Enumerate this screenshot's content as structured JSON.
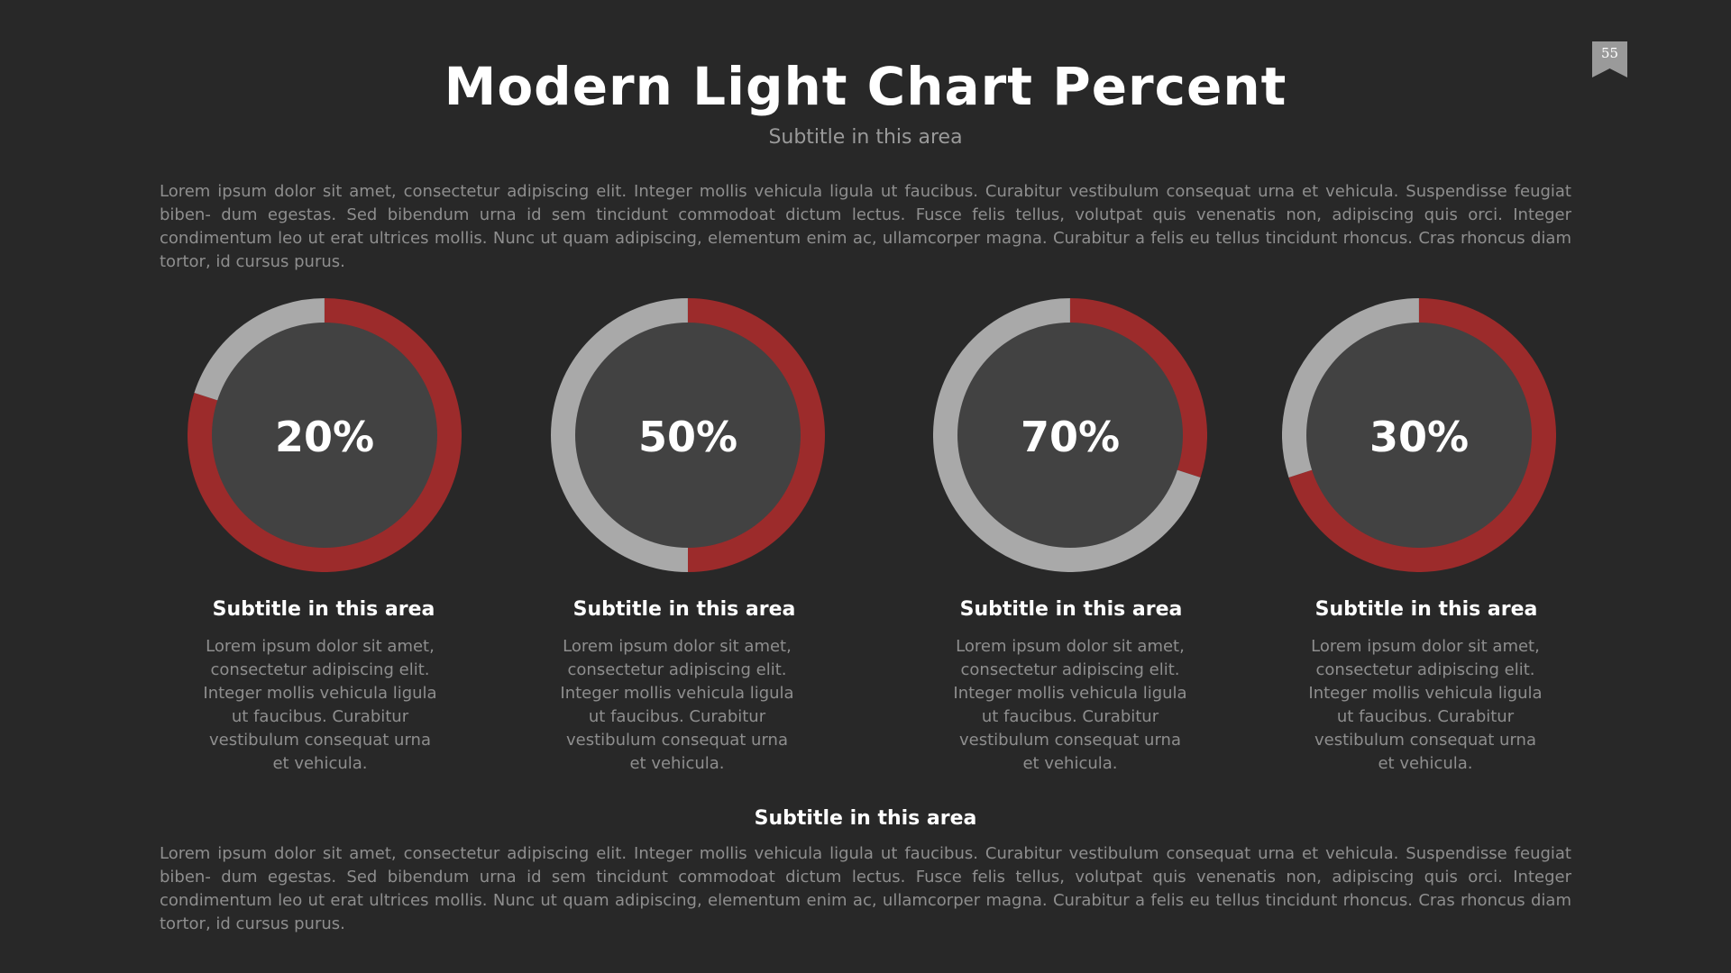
{
  "page_number": "55",
  "header": {
    "title": "Modern Light Chart Percent",
    "subtitle": "Subtitle in this area"
  },
  "intro_text": "Lorem ipsum dolor sit amet, consectetur adipiscing elit. Integer mollis vehicula ligula ut faucibus. Curabitur vestibulum consequat urna et vehicula. Suspendisse feugiat biben- dum egestas. Sed bibendum urna id sem tincidunt commodoat dictum lectus. Fusce felis tellus, volutpat quis venenatis non, adipiscing quis orci. Integer condimentum leo ut erat ultrices mollis. Nunc ut quam adipiscing, elementum enim ac, ullamcorper magna. Curabitur a felis eu tellus tincidunt rhoncus. Cras rhoncus diam tortor, id cursus purus.",
  "colors": {
    "background": "#282828",
    "accent": "#9c2b2b",
    "track": "#a9a9a9",
    "inner": "#424242"
  },
  "chart_data": {
    "type": "donut",
    "charts": [
      {
        "label": "20%",
        "value": 20,
        "highlight": "remainder"
      },
      {
        "label": "50%",
        "value": 50,
        "highlight": "value"
      },
      {
        "label": "70%",
        "value": 70,
        "highlight": "remainder"
      },
      {
        "label": "30%",
        "value": 30,
        "highlight": "remainder"
      }
    ]
  },
  "columns": [
    {
      "subtitle": "Subtitle in this area",
      "text": [
        "Lorem ipsum dolor sit amet,",
        "consectetur adipiscing elit.",
        "Integer mollis vehicula ligula",
        "ut faucibus. Curabitur",
        "vestibulum consequat urna",
        "et vehicula."
      ]
    },
    {
      "subtitle": "Subtitle in this area",
      "text": [
        "Lorem ipsum dolor sit amet,",
        "consectetur adipiscing elit.",
        "Integer mollis vehicula ligula",
        "ut faucibus. Curabitur",
        "vestibulum consequat urna",
        "et vehicula."
      ]
    },
    {
      "subtitle": "Subtitle in this area",
      "text": [
        "Lorem ipsum dolor sit amet,",
        "consectetur adipiscing elit.",
        "Integer mollis vehicula ligula",
        "ut faucibus. Curabitur",
        "vestibulum consequat urna",
        "et vehicula."
      ]
    },
    {
      "subtitle": "Subtitle in this area",
      "text": [
        "Lorem ipsum dolor sit amet,",
        "consectetur adipiscing elit.",
        "Integer mollis vehicula ligula",
        "ut faucibus. Curabitur",
        "vestibulum consequat urna",
        "et vehicula."
      ]
    }
  ],
  "bottom": {
    "subtitle": "Subtitle in this area",
    "text": "Lorem ipsum dolor sit amet, consectetur adipiscing elit. Integer mollis vehicula ligula ut faucibus. Curabitur vestibulum consequat urna et vehicula. Suspendisse feugiat biben- dum egestas. Sed bibendum urna id sem tincidunt commodoat dictum lectus. Fusce felis tellus, volutpat quis venenatis non, adipiscing quis orci. Integer condimentum leo ut erat ultrices mollis. Nunc ut quam adipiscing, elementum enim ac, ullamcorper magna. Curabitur a felis eu tellus tincidunt rhoncus. Cras rhoncus diam tortor, id cursus purus."
  }
}
